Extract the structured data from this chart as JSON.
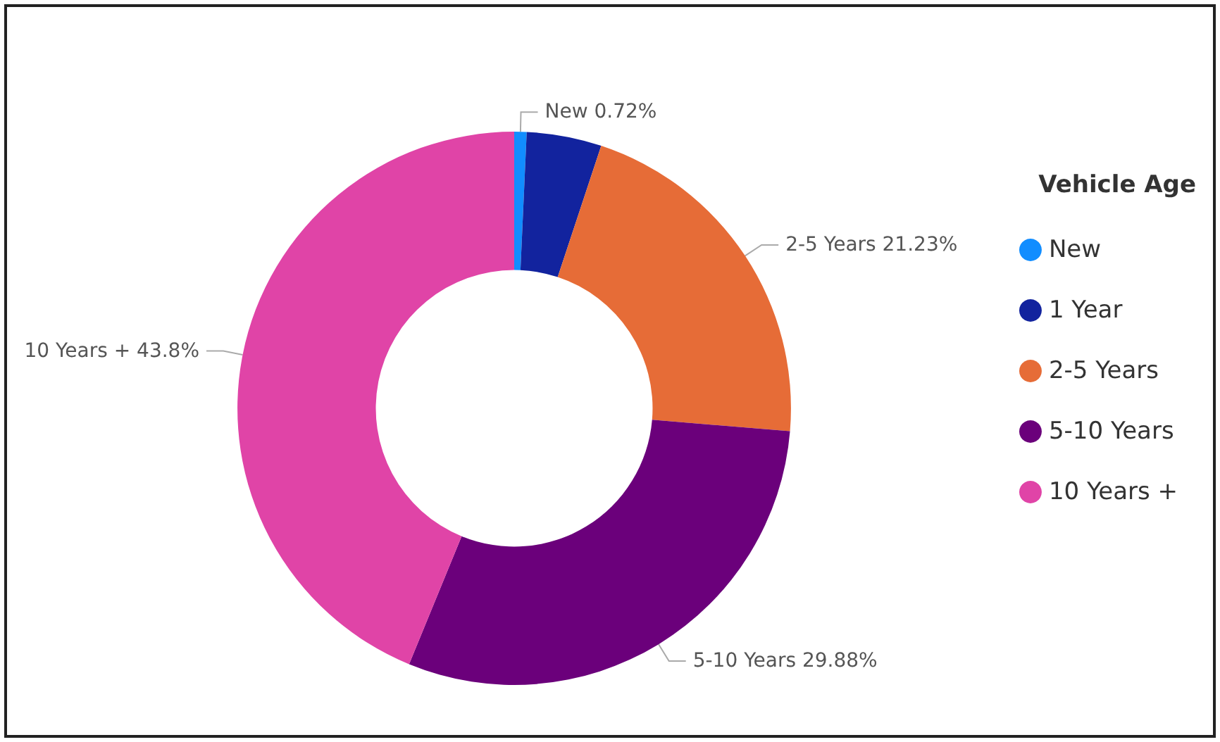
{
  "chart_data": {
    "type": "donut",
    "legend_title": "Vehicle Age",
    "legend": "right",
    "categories": [
      "New",
      "1 Year",
      "2-5 Years",
      "5-10 Years",
      "10 Years +"
    ],
    "values": [
      0.72,
      4.37,
      21.23,
      29.88,
      43.8
    ],
    "value_labels": [
      "New 0.72%",
      null,
      "2-5 Years 21.23%",
      "5-10 Years 29.88%",
      "10 Years + 43.8%"
    ],
    "colors": [
      "#118dff",
      "#12239e",
      "#e66c37",
      "#6b007b",
      "#e044a7"
    ]
  }
}
